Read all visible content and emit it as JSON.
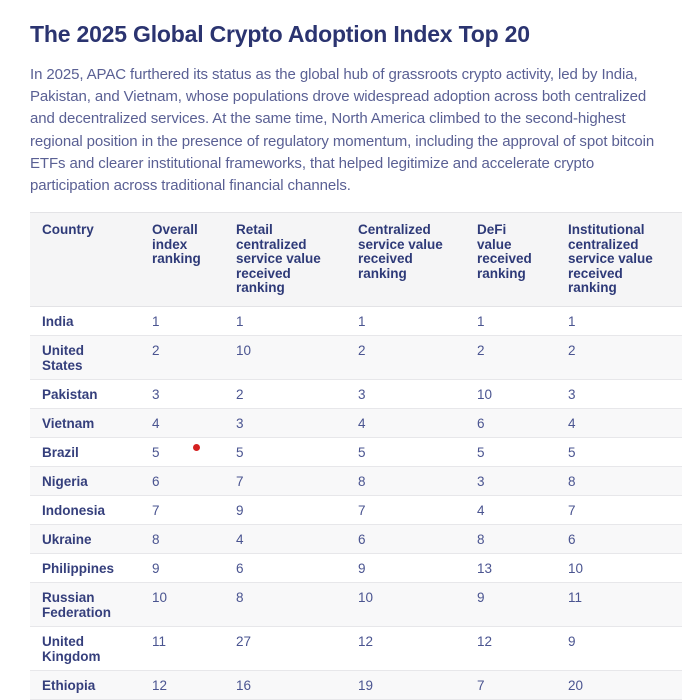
{
  "title": "The 2025 Global Crypto Adoption Index Top 20",
  "intro": "In 2025, APAC furthered its status as the global hub of grassroots crypto activity, led by India, Pakistan, and Vietnam, whose populations drove widespread adoption across both centralized and decentralized services. At the same time, North America climbed to the second-highest regional position in the presence of regulatory momentum, including the approval of spot bitcoin ETFs and clearer institutional frameworks, that helped legitimize and accelerate crypto participation across traditional financial channels.",
  "table": {
    "columns": [
      "Country",
      "Overall index ranking",
      "Retail centralized service value received ranking",
      "Centralized service value received ranking",
      "DeFi value received ranking",
      "Institutional centralized service value received ranking"
    ],
    "rows": [
      {
        "country": "India",
        "rankings": [
          1,
          1,
          1,
          1,
          1
        ]
      },
      {
        "country": "United States",
        "rankings": [
          2,
          10,
          2,
          2,
          2
        ]
      },
      {
        "country": "Pakistan",
        "rankings": [
          3,
          2,
          3,
          10,
          3
        ]
      },
      {
        "country": "Vietnam",
        "rankings": [
          4,
          3,
          4,
          6,
          4
        ]
      },
      {
        "country": "Brazil",
        "rankings": [
          5,
          5,
          5,
          5,
          5
        ]
      },
      {
        "country": "Nigeria",
        "rankings": [
          6,
          7,
          8,
          3,
          8
        ]
      },
      {
        "country": "Indonesia",
        "rankings": [
          7,
          9,
          7,
          4,
          7
        ]
      },
      {
        "country": "Ukraine",
        "rankings": [
          8,
          4,
          6,
          8,
          6
        ]
      },
      {
        "country": "Philippines",
        "rankings": [
          9,
          6,
          9,
          13,
          10
        ]
      },
      {
        "country": "Russian Federation",
        "rankings": [
          10,
          8,
          10,
          9,
          11
        ]
      },
      {
        "country": "United Kingdom",
        "rankings": [
          11,
          27,
          12,
          12,
          9
        ]
      },
      {
        "country": "Ethiopia",
        "rankings": [
          12,
          16,
          19,
          7,
          20
        ]
      }
    ]
  },
  "marker": {
    "type": "red-dot"
  },
  "colors": {
    "title_text": "#2b3470",
    "intro_text": "#5a6094",
    "header_text": "#2e3a78",
    "country_text": "#353f7c",
    "cell_text": "#4a5490",
    "header_bg": "#f5f5f6",
    "row_alt_bg": "#f8f8f9",
    "border": "#e7e7ea",
    "marker_red": "#d42020"
  }
}
